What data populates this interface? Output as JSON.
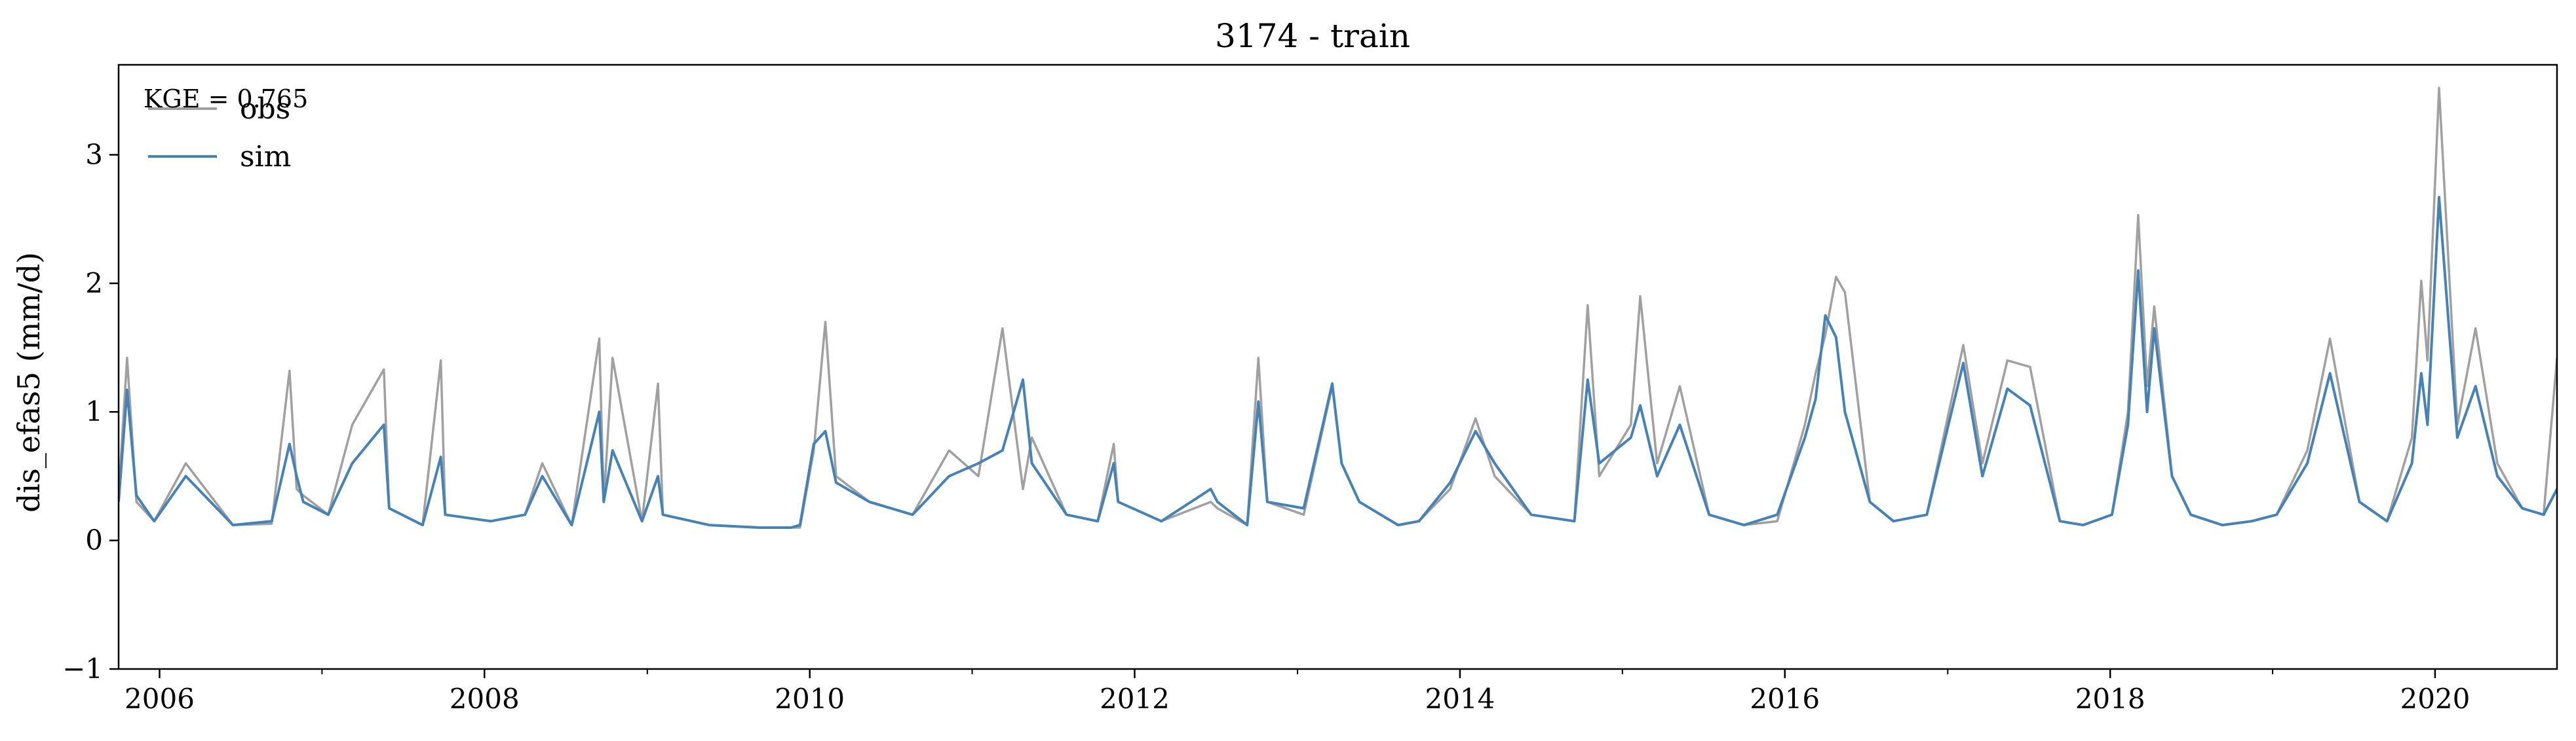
{
  "chart_data": {
    "type": "line",
    "title": "3174 - train",
    "xlabel": "",
    "ylabel": "dis_efas5 (mm/d)",
    "xlim": [
      "2005-10-01",
      "2020-10-01"
    ],
    "ylim": [
      -1,
      3.7
    ],
    "x_ticks": [
      "2006",
      "2008",
      "2010",
      "2012",
      "2014",
      "2016",
      "2018",
      "2020"
    ],
    "y_ticks": [
      "−1",
      "0",
      "1",
      "2",
      "3"
    ],
    "annotation": "KGE = 0.765",
    "legend_position": "top-left",
    "series": [
      {
        "name": "obs",
        "color": "#a0a0a0",
        "x": [
          "2005-10-01",
          "2005-10-20",
          "2005-11-10",
          "2005-12-20",
          "2006-03-01",
          "2006-06-15",
          "2006-09-10",
          "2006-10-20",
          "2006-11-05",
          "2006-11-20",
          "2007-01-15",
          "2007-03-10",
          "2007-05-20",
          "2007-06-01",
          "2007-08-15",
          "2007-09-25",
          "2007-10-05",
          "2008-01-15",
          "2008-04-01",
          "2008-05-10",
          "2008-07-15",
          "2008-09-15",
          "2008-09-25",
          "2008-10-15",
          "2008-12-20",
          "2009-01-25",
          "2009-02-05",
          "2009-05-20",
          "2009-09-10",
          "2009-11-20",
          "2009-12-10",
          "2010-01-10",
          "2010-02-05",
          "2010-03-01",
          "2010-05-15",
          "2010-08-20",
          "2010-11-10",
          "2011-01-15",
          "2011-03-10",
          "2011-04-25",
          "2011-05-15",
          "2011-08-01",
          "2011-10-10",
          "2011-11-15",
          "2011-11-25",
          "2012-03-01",
          "2012-06-20",
          "2012-07-05",
          "2012-09-10",
          "2012-10-05",
          "2012-10-25",
          "2013-01-15",
          "2013-03-20",
          "2013-04-10",
          "2013-05-20",
          "2013-08-15",
          "2013-10-01",
          "2013-12-10",
          "2014-02-05",
          "2014-03-20",
          "2014-06-10",
          "2014-09-15",
          "2014-10-15",
          "2014-11-10",
          "2015-01-20",
          "2015-02-10",
          "2015-03-20",
          "2015-05-10",
          "2015-07-15",
          "2015-10-01",
          "2015-12-15",
          "2016-02-15",
          "2016-03-10",
          "2016-04-01",
          "2016-04-25",
          "2016-05-15",
          "2016-07-10",
          "2016-09-01",
          "2016-11-15",
          "2017-02-05",
          "2017-03-20",
          "2017-05-15",
          "2017-07-05",
          "2017-09-10",
          "2017-11-01",
          "2018-01-05",
          "2018-02-10",
          "2018-03-05",
          "2018-03-25",
          "2018-04-10",
          "2018-05-20",
          "2018-07-01",
          "2018-09-10",
          "2018-11-15",
          "2019-01-10",
          "2019-03-20",
          "2019-05-10",
          "2019-07-15",
          "2019-09-15",
          "2019-11-10",
          "2019-12-01",
          "2019-12-15",
          "2020-01-10",
          "2020-02-20",
          "2020-04-01",
          "2020-05-20",
          "2020-07-15",
          "2020-09-01",
          "2020-10-01"
        ],
        "y": [
          0.35,
          1.42,
          0.3,
          0.15,
          0.6,
          0.12,
          0.13,
          1.32,
          0.4,
          0.35,
          0.2,
          0.9,
          1.33,
          0.25,
          0.12,
          1.4,
          0.2,
          0.15,
          0.2,
          0.6,
          0.12,
          1.57,
          0.3,
          1.42,
          0.15,
          1.22,
          0.2,
          0.12,
          0.1,
          0.1,
          0.1,
          0.7,
          1.7,
          0.5,
          0.3,
          0.2,
          0.7,
          0.5,
          1.65,
          0.4,
          0.8,
          0.2,
          0.15,
          0.75,
          0.3,
          0.15,
          0.3,
          0.25,
          0.12,
          1.42,
          0.3,
          0.2,
          1.2,
          0.6,
          0.3,
          0.12,
          0.15,
          0.4,
          0.95,
          0.5,
          0.2,
          0.15,
          1.83,
          0.5,
          0.9,
          1.9,
          0.6,
          1.2,
          0.2,
          0.12,
          0.15,
          0.9,
          1.3,
          1.6,
          2.05,
          1.93,
          0.3,
          0.15,
          0.2,
          1.52,
          0.6,
          1.4,
          1.35,
          0.15,
          0.12,
          0.2,
          1.0,
          2.53,
          1.2,
          1.82,
          0.5,
          0.2,
          0.12,
          0.15,
          0.2,
          0.7,
          1.57,
          0.3,
          0.15,
          0.8,
          2.02,
          1.4,
          3.52,
          0.9,
          1.65,
          0.6,
          0.25,
          0.2,
          1.42
        ]
      },
      {
        "name": "sim",
        "color": "#4682b4",
        "x": [
          "2005-10-01",
          "2005-10-20",
          "2005-11-10",
          "2005-12-20",
          "2006-03-01",
          "2006-06-15",
          "2006-09-10",
          "2006-10-20",
          "2006-11-05",
          "2006-11-20",
          "2007-01-15",
          "2007-03-10",
          "2007-05-20",
          "2007-06-01",
          "2007-08-15",
          "2007-09-25",
          "2007-10-05",
          "2008-01-15",
          "2008-04-01",
          "2008-05-10",
          "2008-07-15",
          "2008-09-15",
          "2008-09-25",
          "2008-10-15",
          "2008-12-20",
          "2009-01-25",
          "2009-02-05",
          "2009-05-20",
          "2009-09-10",
          "2009-11-20",
          "2009-12-10",
          "2010-01-10",
          "2010-02-05",
          "2010-03-01",
          "2010-05-15",
          "2010-08-20",
          "2010-11-10",
          "2011-01-15",
          "2011-03-10",
          "2011-04-25",
          "2011-05-15",
          "2011-08-01",
          "2011-10-10",
          "2011-11-15",
          "2011-11-25",
          "2012-03-01",
          "2012-06-20",
          "2012-07-05",
          "2012-09-10",
          "2012-10-05",
          "2012-10-25",
          "2013-01-15",
          "2013-03-20",
          "2013-04-10",
          "2013-05-20",
          "2013-08-15",
          "2013-10-01",
          "2013-12-10",
          "2014-02-05",
          "2014-03-20",
          "2014-06-10",
          "2014-09-15",
          "2014-10-15",
          "2014-11-10",
          "2015-01-20",
          "2015-02-10",
          "2015-03-20",
          "2015-05-10",
          "2015-07-15",
          "2015-10-01",
          "2015-12-15",
          "2016-02-15",
          "2016-03-10",
          "2016-04-01",
          "2016-04-25",
          "2016-05-15",
          "2016-07-10",
          "2016-09-01",
          "2016-11-15",
          "2017-02-05",
          "2017-03-20",
          "2017-05-15",
          "2017-07-05",
          "2017-09-10",
          "2017-11-01",
          "2018-01-05",
          "2018-02-10",
          "2018-03-05",
          "2018-03-25",
          "2018-04-10",
          "2018-05-20",
          "2018-07-01",
          "2018-09-10",
          "2018-11-15",
          "2019-01-10",
          "2019-03-20",
          "2019-05-10",
          "2019-07-15",
          "2019-09-15",
          "2019-11-10",
          "2019-12-01",
          "2019-12-15",
          "2020-01-10",
          "2020-02-20",
          "2020-04-01",
          "2020-05-20",
          "2020-07-15",
          "2020-09-01",
          "2020-10-01"
        ],
        "y": [
          0.3,
          1.17,
          0.35,
          0.15,
          0.5,
          0.12,
          0.15,
          0.75,
          0.5,
          0.3,
          0.2,
          0.6,
          0.9,
          0.25,
          0.12,
          0.65,
          0.2,
          0.15,
          0.2,
          0.5,
          0.12,
          1.0,
          0.3,
          0.7,
          0.15,
          0.5,
          0.2,
          0.12,
          0.1,
          0.1,
          0.12,
          0.75,
          0.85,
          0.45,
          0.3,
          0.2,
          0.5,
          0.6,
          0.7,
          1.25,
          0.6,
          0.2,
          0.15,
          0.6,
          0.3,
          0.15,
          0.4,
          0.3,
          0.12,
          1.08,
          0.3,
          0.25,
          1.22,
          0.6,
          0.3,
          0.12,
          0.15,
          0.45,
          0.85,
          0.6,
          0.2,
          0.15,
          1.25,
          0.6,
          0.8,
          1.05,
          0.5,
          0.9,
          0.2,
          0.12,
          0.2,
          0.8,
          1.1,
          1.75,
          1.58,
          1.0,
          0.3,
          0.15,
          0.2,
          1.38,
          0.5,
          1.18,
          1.05,
          0.15,
          0.12,
          0.2,
          0.9,
          2.1,
          1.0,
          1.65,
          0.5,
          0.2,
          0.12,
          0.15,
          0.2,
          0.6,
          1.3,
          0.3,
          0.15,
          0.6,
          1.3,
          0.9,
          2.67,
          0.8,
          1.2,
          0.5,
          0.25,
          0.2,
          0.4
        ]
      }
    ]
  }
}
